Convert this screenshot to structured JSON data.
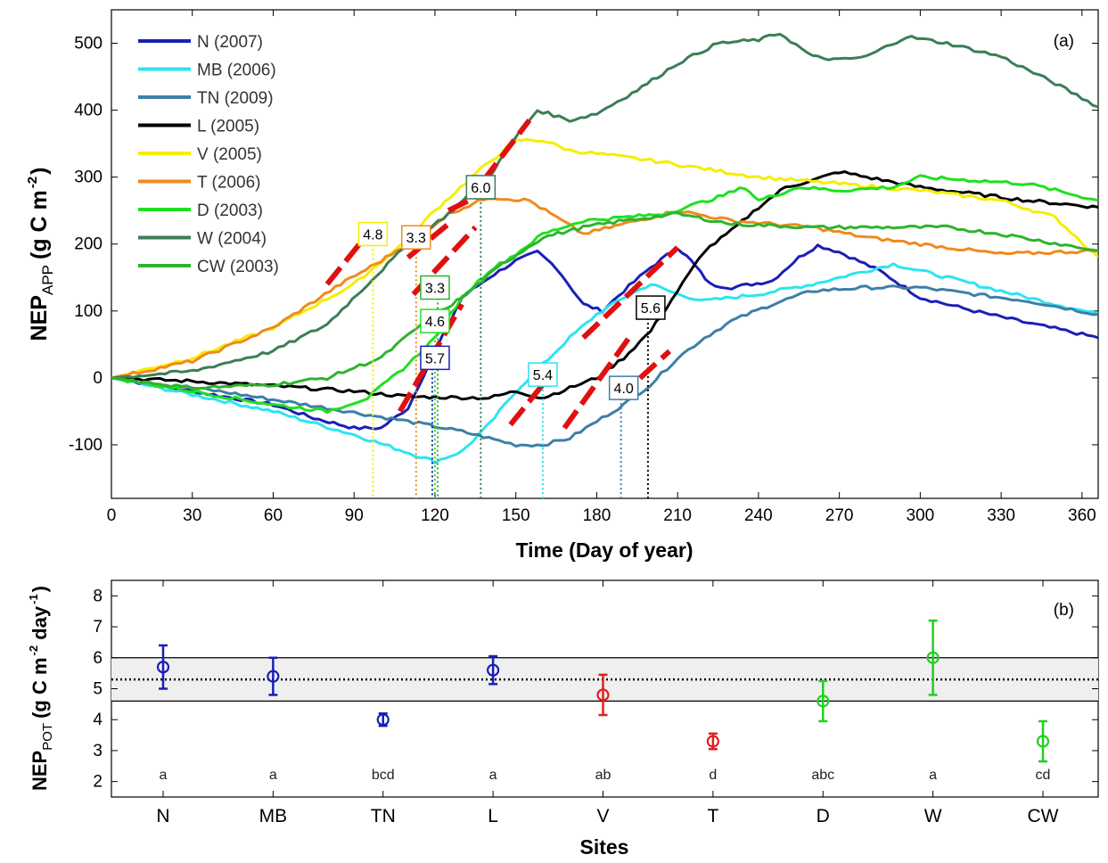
{
  "chart_data": [
    {
      "type": "line",
      "panel_label": "(a)",
      "xlabel": "Time (Day of year)",
      "ylabel_main": "NEP",
      "ylabel_sub": "APP",
      "ylabel_unit": "(g C m",
      "ylabel_exp": "-2",
      "ylabel_close": ")",
      "xlim": [
        0,
        366
      ],
      "ylim": [
        -180,
        550
      ],
      "xticks": [
        0,
        30,
        60,
        90,
        120,
        150,
        180,
        210,
        240,
        270,
        300,
        330,
        360
      ],
      "yticks": [
        -100,
        0,
        100,
        200,
        300,
        400,
        500
      ],
      "legend_position": "top-left",
      "series": [
        {
          "name": "N (2007)",
          "color": "#1a1fb5",
          "points": [
            [
              0,
              0
            ],
            [
              30,
              -20
            ],
            [
              60,
              -40
            ],
            [
              75,
              -60
            ],
            [
              90,
              -75
            ],
            [
              100,
              -75
            ],
            [
              110,
              -45
            ],
            [
              120,
              40
            ],
            [
              130,
              120
            ],
            [
              140,
              150
            ],
            [
              150,
              175
            ],
            [
              158,
              188
            ],
            [
              165,
              165
            ],
            [
              175,
              110
            ],
            [
              182,
              100
            ],
            [
              190,
              130
            ],
            [
              200,
              165
            ],
            [
              210,
              195
            ],
            [
              215,
              175
            ],
            [
              222,
              140
            ],
            [
              230,
              135
            ],
            [
              245,
              145
            ],
            [
              255,
              180
            ],
            [
              262,
              198
            ],
            [
              270,
              188
            ],
            [
              285,
              160
            ],
            [
              300,
              120
            ],
            [
              320,
              100
            ],
            [
              340,
              82
            ],
            [
              366,
              60
            ]
          ]
        },
        {
          "name": "MB (2006)",
          "color": "#2de4f0",
          "points": [
            [
              0,
              0
            ],
            [
              30,
              -25
            ],
            [
              60,
              -50
            ],
            [
              90,
              -85
            ],
            [
              105,
              -105
            ],
            [
              120,
              -125
            ],
            [
              130,
              -110
            ],
            [
              140,
              -70
            ],
            [
              150,
              -20
            ],
            [
              160,
              20
            ],
            [
              170,
              60
            ],
            [
              180,
              95
            ],
            [
              190,
              120
            ],
            [
              200,
              140
            ],
            [
              210,
              125
            ],
            [
              220,
              115
            ],
            [
              240,
              125
            ],
            [
              260,
              140
            ],
            [
              280,
              160
            ],
            [
              290,
              170
            ],
            [
              300,
              160
            ],
            [
              320,
              140
            ],
            [
              340,
              120
            ],
            [
              366,
              95
            ]
          ]
        },
        {
          "name": "TN (2009)",
          "color": "#3d7fa6",
          "points": [
            [
              0,
              0
            ],
            [
              40,
              -20
            ],
            [
              80,
              -45
            ],
            [
              110,
              -65
            ],
            [
              130,
              -80
            ],
            [
              150,
              -100
            ],
            [
              160,
              -100
            ],
            [
              170,
              -90
            ],
            [
              180,
              -65
            ],
            [
              190,
              -40
            ],
            [
              200,
              -10
            ],
            [
              210,
              30
            ],
            [
              220,
              60
            ],
            [
              230,
              85
            ],
            [
              245,
              110
            ],
            [
              260,
              130
            ],
            [
              280,
              135
            ],
            [
              300,
              135
            ],
            [
              320,
              125
            ],
            [
              340,
              115
            ],
            [
              366,
              95
            ]
          ]
        },
        {
          "name": "L (2005)",
          "color": "#000000",
          "points": [
            [
              0,
              0
            ],
            [
              30,
              -5
            ],
            [
              60,
              -12
            ],
            [
              90,
              -20
            ],
            [
              110,
              -28
            ],
            [
              140,
              -30
            ],
            [
              150,
              -20
            ],
            [
              160,
              -30
            ],
            [
              170,
              -15
            ],
            [
              180,
              0
            ],
            [
              190,
              30
            ],
            [
              200,
              70
            ],
            [
              210,
              130
            ],
            [
              220,
              190
            ],
            [
              230,
              220
            ],
            [
              240,
              255
            ],
            [
              250,
              285
            ],
            [
              260,
              295
            ],
            [
              270,
              308
            ],
            [
              280,
              300
            ],
            [
              300,
              285
            ],
            [
              320,
              275
            ],
            [
              340,
              265
            ],
            [
              366,
              255
            ]
          ]
        },
        {
          "name": "V (2005)",
          "color": "#f4ee00",
          "points": [
            [
              0,
              0
            ],
            [
              30,
              30
            ],
            [
              60,
              75
            ],
            [
              90,
              140
            ],
            [
              105,
              190
            ],
            [
              120,
              250
            ],
            [
              135,
              305
            ],
            [
              150,
              355
            ],
            [
              160,
              355
            ],
            [
              170,
              340
            ],
            [
              200,
              325
            ],
            [
              240,
              300
            ],
            [
              270,
              290
            ],
            [
              300,
              280
            ],
            [
              330,
              265
            ],
            [
              350,
              240
            ],
            [
              366,
              180
            ]
          ]
        },
        {
          "name": "T (2006)",
          "color": "#ef8a1c",
          "points": [
            [
              0,
              0
            ],
            [
              30,
              25
            ],
            [
              60,
              75
            ],
            [
              85,
              140
            ],
            [
              100,
              175
            ],
            [
              115,
              215
            ],
            [
              125,
              245
            ],
            [
              140,
              270
            ],
            [
              155,
              265
            ],
            [
              165,
              240
            ],
            [
              175,
              215
            ],
            [
              185,
              225
            ],
            [
              200,
              240
            ],
            [
              210,
              250
            ],
            [
              230,
              235
            ],
            [
              260,
              225
            ],
            [
              280,
              210
            ],
            [
              310,
              195
            ],
            [
              330,
              185
            ],
            [
              366,
              190
            ]
          ]
        },
        {
          "name": "D (2003)",
          "color": "#20e020",
          "points": [
            [
              0,
              0
            ],
            [
              30,
              -20
            ],
            [
              60,
              -40
            ],
            [
              80,
              -50
            ],
            [
              95,
              -30
            ],
            [
              110,
              20
            ],
            [
              120,
              60
            ],
            [
              130,
              120
            ],
            [
              140,
              160
            ],
            [
              150,
              185
            ],
            [
              160,
              215
            ],
            [
              175,
              235
            ],
            [
              190,
              240
            ],
            [
              205,
              245
            ],
            [
              225,
              270
            ],
            [
              235,
              285
            ],
            [
              240,
              265
            ],
            [
              255,
              285
            ],
            [
              270,
              280
            ],
            [
              290,
              285
            ],
            [
              300,
              300
            ],
            [
              320,
              295
            ],
            [
              340,
              290
            ],
            [
              366,
              265
            ]
          ]
        },
        {
          "name": "W (2004)",
          "color": "#3b7e56",
          "points": [
            [
              0,
              0
            ],
            [
              30,
              10
            ],
            [
              60,
              40
            ],
            [
              80,
              80
            ],
            [
              95,
              140
            ],
            [
              110,
              200
            ],
            [
              125,
              245
            ],
            [
              140,
              300
            ],
            [
              150,
              360
            ],
            [
              158,
              400
            ],
            [
              170,
              385
            ],
            [
              180,
              395
            ],
            [
              195,
              430
            ],
            [
              210,
              470
            ],
            [
              225,
              500
            ],
            [
              240,
              505
            ],
            [
              248,
              515
            ],
            [
              260,
              480
            ],
            [
              270,
              475
            ],
            [
              280,
              480
            ],
            [
              295,
              510
            ],
            [
              310,
              500
            ],
            [
              330,
              480
            ],
            [
              350,
              440
            ],
            [
              366,
              405
            ]
          ]
        },
        {
          "name": "CW (2003)",
          "color": "#2fb32f",
          "points": [
            [
              0,
              0
            ],
            [
              30,
              -15
            ],
            [
              60,
              -10
            ],
            [
              80,
              0
            ],
            [
              100,
              30
            ],
            [
              115,
              80
            ],
            [
              130,
              120
            ],
            [
              145,
              170
            ],
            [
              160,
              210
            ],
            [
              175,
              225
            ],
            [
              190,
              235
            ],
            [
              210,
              245
            ],
            [
              230,
              230
            ],
            [
              260,
              225
            ],
            [
              290,
              225
            ],
            [
              310,
              225
            ],
            [
              330,
              215
            ],
            [
              366,
              190
            ]
          ]
        }
      ],
      "fit_segments": [
        {
          "x": [
            80,
            95
          ],
          "y": [
            140,
            215
          ]
        },
        {
          "x": [
            110,
            125
          ],
          "y": [
            180,
            230
          ]
        },
        {
          "x": [
            125,
            140
          ],
          "y": [
            250,
            280
          ]
        },
        {
          "x": [
            138,
            155
          ],
          "y": [
            295,
            385
          ]
        },
        {
          "x": [
            112,
            135
          ],
          "y": [
            125,
            225
          ]
        },
        {
          "x": [
            107,
            130
          ],
          "y": [
            -50,
            110
          ]
        },
        {
          "x": [
            148,
            162
          ],
          "y": [
            -70,
            0
          ]
        },
        {
          "x": [
            175,
            210
          ],
          "y": [
            60,
            195
          ]
        },
        {
          "x": [
            168,
            192
          ],
          "y": [
            -75,
            60
          ]
        },
        {
          "x": [
            188,
            207
          ],
          "y": [
            -30,
            40
          ]
        }
      ],
      "annotations": [
        {
          "text": "4.8",
          "x": 97,
          "y": 215,
          "drop_x": 97,
          "color": "#f4ee00"
        },
        {
          "text": "3.3",
          "x": 113,
          "y": 210,
          "drop_x": 113,
          "color": "#ef8a1c"
        },
        {
          "text": "6.0",
          "x": 137,
          "y": 285,
          "drop_x": 137,
          "color": "#3b7e56"
        },
        {
          "text": "3.3",
          "x": 120,
          "y": 135,
          "drop_x": 121,
          "color": "#2fb32f"
        },
        {
          "text": "4.6",
          "x": 120,
          "y": 85,
          "drop_x": 120,
          "color": "#20e020"
        },
        {
          "text": "5.7",
          "x": 120,
          "y": 30,
          "drop_x": 119,
          "color": "#1a1fb5"
        },
        {
          "text": "5.4",
          "x": 160,
          "y": 5,
          "drop_x": 160,
          "color": "#2de4f0"
        },
        {
          "text": "4.0",
          "x": 190,
          "y": -15,
          "drop_x": 189,
          "color": "#3d7fa6"
        },
        {
          "text": "5.6",
          "x": 200,
          "y": 105,
          "drop_x": 199,
          "color": "#000000"
        }
      ]
    },
    {
      "type": "scatter",
      "panel_label": "(b)",
      "xlabel": "Sites",
      "ylabel_main": "NEP",
      "ylabel_sub": "POT",
      "ylabel_unit": "(g C m",
      "ylabel_exp1": "-2",
      "ylabel_mid": " day",
      "ylabel_exp2": "-1",
      "ylabel_close": ")",
      "ylim": [
        1.5,
        8.5
      ],
      "yticks": [
        2,
        3,
        4,
        5,
        6,
        7,
        8
      ],
      "band": [
        4.6,
        6.0
      ],
      "mean_line": 5.3,
      "categories": [
        "N",
        "MB",
        "TN",
        "L",
        "V",
        "T",
        "D",
        "W",
        "CW"
      ],
      "values": [
        5.7,
        5.4,
        4.0,
        5.6,
        4.8,
        3.3,
        4.6,
        6.0,
        3.3
      ],
      "errors": [
        0.7,
        0.6,
        0.2,
        0.45,
        0.65,
        0.25,
        0.65,
        1.2,
        0.65
      ],
      "point_colors": [
        "#1a1fb5",
        "#1a1fb5",
        "#1a1fb5",
        "#1a1fb5",
        "#e02020",
        "#e02020",
        "#20d020",
        "#20d020",
        "#20d020"
      ],
      "letters": [
        "a",
        "a",
        "bcd",
        "a",
        "ab",
        "d",
        "abc",
        "a",
        "cd"
      ]
    }
  ]
}
